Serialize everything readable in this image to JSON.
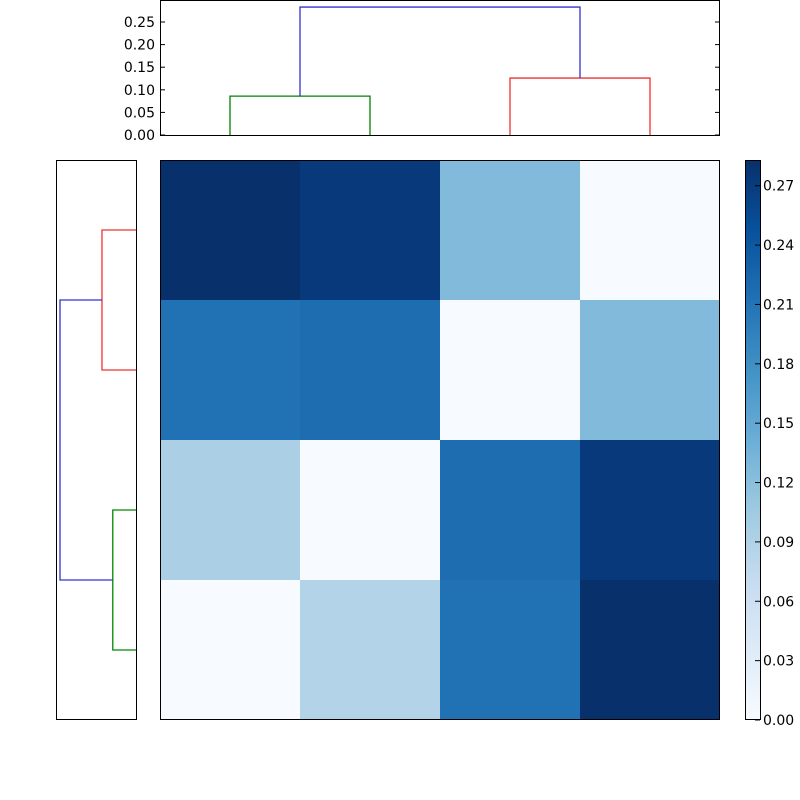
{
  "chart_data": [
    {
      "type": "dendrogram",
      "name": "top-dendrogram",
      "orientation": "top",
      "ylim": [
        0,
        0.29
      ],
      "yticks": [
        "0.00",
        "0.05",
        "0.10",
        "0.15",
        "0.20",
        "0.25"
      ],
      "links": [
        {
          "color": "#008000",
          "height": 0.086,
          "joins": [
            "leaf1",
            "leaf2"
          ]
        },
        {
          "color": "#ff0000",
          "height": 0.126,
          "joins": [
            "leaf3",
            "leaf4"
          ]
        },
        {
          "color": "#0000ff",
          "height": 0.283,
          "joins": [
            "cluster(1,2)",
            "cluster(3,4)"
          ]
        }
      ]
    },
    {
      "type": "dendrogram",
      "name": "left-dendrogram",
      "orientation": "left",
      "links": [
        {
          "color": "#ff0000",
          "height": 0.126,
          "joins": [
            "row1",
            "row2"
          ]
        },
        {
          "color": "#008000",
          "height": 0.086,
          "joins": [
            "row3",
            "row4"
          ]
        },
        {
          "color": "#0000ff",
          "height": 0.283,
          "joins": [
            "cluster(1,2)",
            "cluster(3,4)"
          ]
        }
      ]
    },
    {
      "type": "heatmap",
      "name": "distance-matrix",
      "colormap": "Blues",
      "rows": 4,
      "cols": 4,
      "values": [
        [
          0.283,
          0.263,
          0.126,
          0.0
        ],
        [
          0.198,
          0.195,
          0.0,
          0.126
        ],
        [
          0.086,
          0.0,
          0.195,
          0.263
        ],
        [
          0.0,
          0.086,
          0.198,
          0.283
        ]
      ],
      "cell_colors": [
        [
          "#08306b",
          "#08397a",
          "#82badb",
          "#f7fbff"
        ],
        [
          "#2171b5",
          "#1f6db1",
          "#f7fbff",
          "#82badb"
        ],
        [
          "#abcfe5",
          "#f7fbff",
          "#1f6db1",
          "#08397a"
        ],
        [
          "#f7fbff",
          "#b3d3e8",
          "#2171b5",
          "#08306b"
        ]
      ]
    },
    {
      "type": "colorbar",
      "name": "colorbar",
      "range": [
        0,
        0.283
      ],
      "ticks": [
        "0.00",
        "0.03",
        "0.06",
        "0.09",
        "0.12",
        "0.15",
        "0.18",
        "0.21",
        "0.24",
        "0.27"
      ]
    }
  ]
}
